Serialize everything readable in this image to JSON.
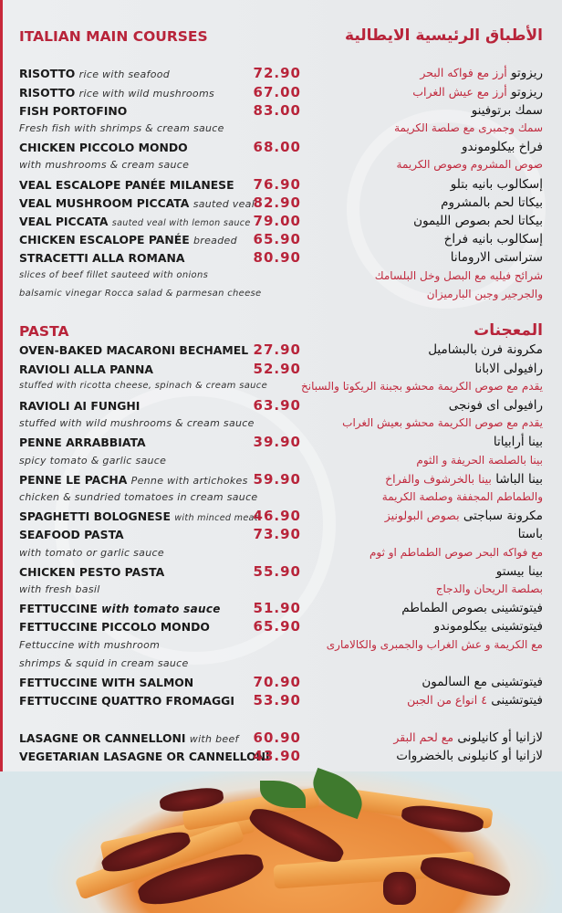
{
  "colors": {
    "accent": "#b8243a",
    "arabic_desc": "#c12a3e",
    "background": "#e9ebed"
  },
  "lines": [
    {
      "type": "heading",
      "en": "ITALIAN MAIN COURSES",
      "ar": "الأطباق الرئيسية الايطالية"
    },
    {
      "type": "blank"
    },
    {
      "en": "RISOTTO",
      "desc": "rice with seafood",
      "price": "72.90",
      "ar": "ريزوتو",
      "ar_desc": "أرز مع فواكه البحر"
    },
    {
      "en": "RISOTTO",
      "desc": "rice with wild mushrooms",
      "price": "67.00",
      "ar": "ريزوتو",
      "ar_desc": "أرز مع عيش الغراب"
    },
    {
      "en": "FISH PORTOFINO",
      "price": "83.00",
      "ar": "سمك برتوفينو"
    },
    {
      "desc": "Fresh fish with shrimps & cream sauce",
      "ar_desc": "سمك وجمبرى مع صلصة الكريمة"
    },
    {
      "en": "CHICKEN PICCOLO MONDO",
      "price": "68.00",
      "ar": "فراخ بيكلوموندو"
    },
    {
      "desc": "with mushrooms & cream sauce",
      "ar_desc": "صوص المشروم وصوص الكريمة"
    },
    {
      "en": "VEAL ESCALOPE PANÉE MILANESE",
      "price": "76.90",
      "ar": "إسكالوب بانيه بتلو"
    },
    {
      "en": "VEAL MUSHROOM PICCATA",
      "desc": "sauted veal",
      "price": "82.90",
      "ar": "بيكاتا لحم بالمشروم"
    },
    {
      "en": "VEAL PICCATA",
      "desc": "sauted veal with lemon sauce",
      "small": true,
      "price": "79.00",
      "ar": "بيكاتا لحم بصوص الليمون"
    },
    {
      "en": "CHICKEN ESCALOPE PANÉE",
      "desc": "breaded",
      "price": "65.90",
      "ar": "إسكالوب بانيه فراخ"
    },
    {
      "en": "STRACETTI ALLA ROMANA",
      "price": "80.90",
      "ar": "ستراستى الارومانا"
    },
    {
      "desc": "slices of beef fillet sauteed with onions",
      "small": true,
      "ar_desc": "شرائح فيليه مع البصل وخل البلسامك"
    },
    {
      "desc": "balsamic vinegar Rocca salad & parmesan cheese",
      "small": true,
      "ar_desc": "والجرجير وجبن البارميزان"
    },
    {
      "type": "blank"
    },
    {
      "type": "heading",
      "en": "PASTA",
      "ar": "المعجنات"
    },
    {
      "en": "OVEN-BAKED MACARONI BECHAMEL",
      "price": "27.90",
      "ar": "مكرونة فرن بالبشاميل"
    },
    {
      "en": "RAVIOLI ALLA PANNA",
      "price": "52.90",
      "ar": "رافيولى الابانا"
    },
    {
      "desc": "stuffed with ricotta cheese, spinach & cream sauce",
      "small": true,
      "ar_desc": "يقدم مع صوص الكريمة محشو بجبنة الريكوتا والسبانخ"
    },
    {
      "en": "RAVIOLI AI FUNGHI",
      "price": "63.90",
      "ar": "رافيولى اى فونجى"
    },
    {
      "desc": "stuffed with wild mushrooms & cream sauce",
      "ar_desc": "يقدم مع صوص الكريمة محشو بعيش الغراب"
    },
    {
      "en": "PENNE ARRABBIATA",
      "price": "39.90",
      "ar": "بينا أرابياتا"
    },
    {
      "desc": "spicy tomato & garlic sauce",
      "ar_desc": "بينا بالصلصة الحريفة و الثوم"
    },
    {
      "en": "PENNE LE PACHA",
      "desc": "Penne with artichokes",
      "price": "59.90",
      "ar": "بينا الباشا",
      "ar_desc": "بينا بالخرشوف والفراخ"
    },
    {
      "desc": "chicken & sundried tomatoes in cream sauce",
      "ar_desc": "والطماطم المجففة وصلصة الكريمة"
    },
    {
      "en": "SPAGHETTI BOLOGNESE",
      "desc": "with minced meat",
      "small": true,
      "price": "46.90",
      "ar": "مكرونة سباجتى",
      "ar_desc": "بصوص البولونيز"
    },
    {
      "en": "SEAFOOD PASTA",
      "price": "73.90",
      "ar": "باستا"
    },
    {
      "desc": "with tomato or garlic sauce",
      "ar_desc": "مع فواكه البحر  صوص الطماطم او ثوم"
    },
    {
      "en": "CHICKEN PESTO PASTA",
      "price": "55.90",
      "ar": "بينا بيستو"
    },
    {
      "desc": "with fresh basil",
      "ar_desc": "بصلصة الريحان والدجاج"
    },
    {
      "en": "FETTUCCINE",
      "desc": "with tomato sauce",
      "strong": true,
      "price": "51.90",
      "ar": "فيتوتشينى بصوص الطماطم"
    },
    {
      "en": "FETTUCCINE PICCOLO MONDO",
      "price": "65.90",
      "ar": "فيتوتشينى بيكلوموندو"
    },
    {
      "desc": "Fettuccine with mushroom",
      "ar_desc": "مع الكريمة و عش الغراب والجمبرى والكالامارى"
    },
    {
      "desc": " shrimps & squid in cream sauce"
    },
    {
      "en": "FETTUCCINE WITH SALMON",
      "price": "70.90",
      "ar": "فيتوتشينى مع السالمون"
    },
    {
      "en": "FETTUCCINE QUATTRO FROMAGGI",
      "price": "53.90",
      "ar": "فيتوتشينى",
      "ar_desc": "٤ انواع من الجبن"
    },
    {
      "type": "blank"
    },
    {
      "en": "LASAGNE OR CANNELLONI",
      "desc": "with beef",
      "price": "60.90",
      "ar": "لازانيا  أو كانيلونى",
      "ar_desc": "مع لحم البقر"
    },
    {
      "en": "VEGETARIAN LASAGNE OR CANNELLONI",
      "price": "43.90",
      "ar": "لازانيا أو كانيلونى بالخضروات"
    }
  ],
  "photo": {
    "subject": "penne-with-sundried-tomatoes"
  }
}
